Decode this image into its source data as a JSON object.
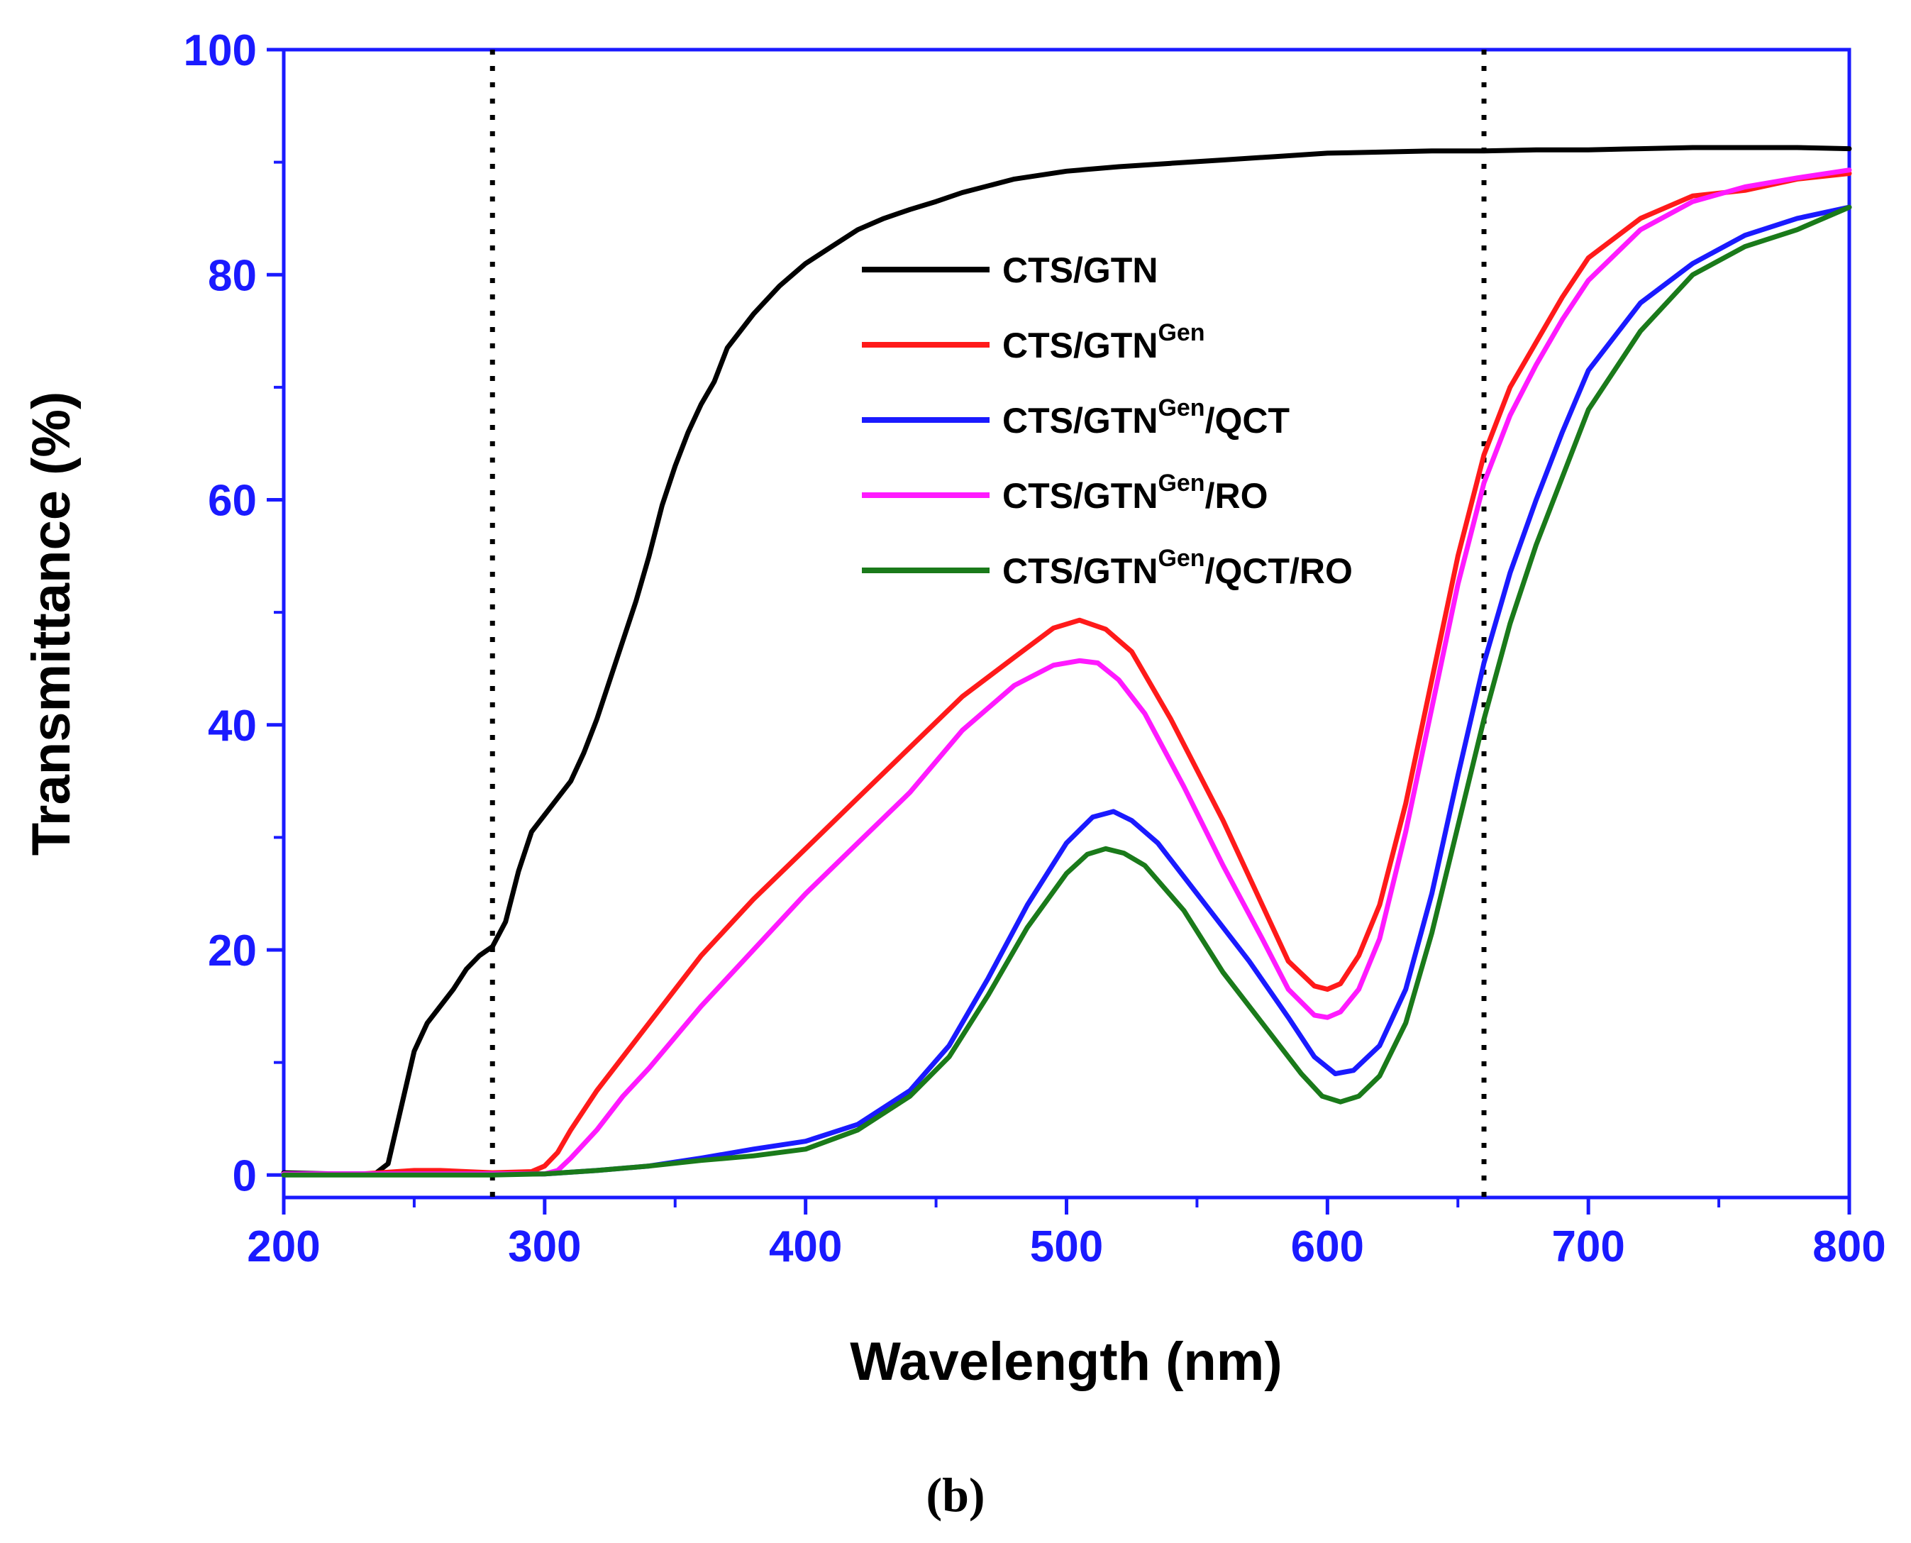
{
  "chart_data": {
    "type": "line",
    "title": "",
    "xlabel": "Wavelength (nm)",
    "ylabel": "Transmittance (%)",
    "caption": "(b)",
    "xlim": [
      200,
      800
    ],
    "ylim": [
      -2,
      100
    ],
    "xticks": [
      200,
      300,
      400,
      500,
      600,
      700,
      800
    ],
    "yticks": [
      0,
      20,
      40,
      60,
      80,
      100
    ],
    "grid": false,
    "legend_position": "center",
    "reference_lines_x": [
      280,
      660
    ],
    "axis_color": "#1a1aff",
    "series": [
      {
        "name": "CTS/GTN",
        "base": "CTS/GTN",
        "sup": "",
        "suffix": "",
        "color": "#000000",
        "x": [
          200,
          220,
          235,
          240,
          245,
          250,
          255,
          260,
          265,
          270,
          275,
          280,
          285,
          290,
          295,
          300,
          305,
          310,
          315,
          320,
          325,
          330,
          335,
          340,
          345,
          350,
          355,
          360,
          365,
          370,
          380,
          390,
          400,
          410,
          420,
          430,
          440,
          450,
          460,
          480,
          500,
          520,
          540,
          560,
          580,
          600,
          620,
          640,
          660,
          680,
          700,
          720,
          740,
          760,
          780,
          800
        ],
        "y": [
          0.2,
          0.1,
          0.1,
          1,
          6,
          11,
          13.5,
          15,
          16.5,
          18.3,
          19.5,
          20.3,
          22.5,
          27,
          30.5,
          32,
          33.5,
          35,
          37.5,
          40.5,
          44,
          47.5,
          51,
          55,
          59.5,
          63,
          66,
          68.5,
          70.5,
          73.5,
          76.5,
          79,
          81,
          82.5,
          84,
          85,
          85.8,
          86.5,
          87.3,
          88.5,
          89.2,
          89.6,
          89.9,
          90.2,
          90.5,
          90.8,
          90.9,
          91,
          91,
          91.1,
          91.1,
          91.2,
          91.3,
          91.3,
          91.3,
          91.2
        ]
      },
      {
        "name": "CTS/GTNGen",
        "base": "CTS/GTN",
        "sup": "Gen",
        "suffix": "",
        "color": "#ff1a1a",
        "x": [
          200,
          230,
          250,
          260,
          280,
          295,
          300,
          305,
          310,
          320,
          330,
          340,
          360,
          380,
          400,
          420,
          440,
          460,
          480,
          495,
          505,
          515,
          525,
          540,
          560,
          575,
          585,
          595,
          600,
          605,
          612,
          620,
          630,
          640,
          650,
          660,
          670,
          680,
          690,
          700,
          720,
          740,
          760,
          780,
          800
        ],
        "y": [
          0.1,
          0.1,
          0.4,
          0.4,
          0.2,
          0.3,
          0.8,
          2,
          4,
          7.5,
          10.5,
          13.5,
          19.5,
          24.5,
          29,
          33.5,
          38,
          42.5,
          46,
          48.6,
          49.3,
          48.5,
          46.5,
          40.5,
          31.5,
          24,
          19,
          16.8,
          16.5,
          17,
          19.5,
          24,
          33,
          44,
          55,
          64,
          70,
          74,
          78,
          81.5,
          85,
          87,
          87.5,
          88.5,
          89
        ]
      },
      {
        "name": "CTS/GTNGen/QCT",
        "base": "CTS/GTN",
        "sup": "Gen",
        "suffix": "/QCT",
        "color": "#1a1aff",
        "x": [
          200,
          250,
          280,
          300,
          320,
          340,
          360,
          380,
          400,
          420,
          440,
          455,
          470,
          485,
          500,
          510,
          518,
          525,
          535,
          550,
          570,
          585,
          595,
          603,
          610,
          620,
          630,
          640,
          650,
          660,
          670,
          680,
          690,
          700,
          720,
          740,
          760,
          780,
          800
        ],
        "y": [
          0.1,
          0.1,
          0.1,
          0.1,
          0.4,
          0.8,
          1.5,
          2.3,
          3,
          4.5,
          7.5,
          11.5,
          17.5,
          24,
          29.5,
          31.8,
          32.3,
          31.5,
          29.5,
          25,
          19,
          14,
          10.5,
          9,
          9.3,
          11.5,
          16.5,
          25,
          35.5,
          45.5,
          53.5,
          60,
          66,
          71.5,
          77.5,
          81,
          83.5,
          85,
          86
        ]
      },
      {
        "name": "CTS/GTNGen/RO",
        "base": "CTS/GTN",
        "sup": "Gen",
        "suffix": "/RO",
        "color": "#ff1aff",
        "x": [
          200,
          230,
          260,
          300,
          305,
          310,
          320,
          330,
          340,
          360,
          380,
          400,
          420,
          440,
          460,
          480,
          495,
          505,
          512,
          520,
          530,
          545,
          560,
          575,
          585,
          595,
          600,
          605,
          612,
          620,
          630,
          640,
          650,
          660,
          670,
          680,
          690,
          700,
          720,
          740,
          760,
          780,
          800
        ],
        "y": [
          0.1,
          0.1,
          0.1,
          0.1,
          0.4,
          1.5,
          4,
          7,
          9.5,
          15,
          20,
          25,
          29.5,
          34,
          39.5,
          43.5,
          45.3,
          45.7,
          45.5,
          44,
          41,
          34.5,
          27.5,
          21,
          16.5,
          14.2,
          14,
          14.5,
          16.5,
          21,
          30.5,
          41.5,
          52.5,
          61.5,
          67.5,
          72,
          76,
          79.5,
          84,
          86.5,
          87.8,
          88.6,
          89.3
        ]
      },
      {
        "name": "CTS/GTNGen/QCT/RO",
        "base": "CTS/GTN",
        "sup": "Gen",
        "suffix": "/QCT/RO",
        "color": "#1a7a1a",
        "x": [
          200,
          250,
          280,
          300,
          320,
          340,
          360,
          380,
          400,
          420,
          440,
          455,
          470,
          485,
          500,
          508,
          515,
          522,
          530,
          545,
          560,
          575,
          590,
          598,
          605,
          612,
          620,
          630,
          640,
          650,
          660,
          670,
          680,
          690,
          700,
          720,
          740,
          760,
          780,
          800
        ],
        "y": [
          0,
          0,
          0,
          0.1,
          0.4,
          0.8,
          1.3,
          1.7,
          2.3,
          4,
          7,
          10.5,
          16,
          22,
          26.8,
          28.5,
          29,
          28.6,
          27.5,
          23.5,
          18,
          13.5,
          9,
          7,
          6.5,
          7,
          8.8,
          13.5,
          21.5,
          31,
          40.5,
          49,
          56,
          62,
          68,
          75,
          80,
          82.5,
          84,
          86
        ]
      }
    ]
  }
}
